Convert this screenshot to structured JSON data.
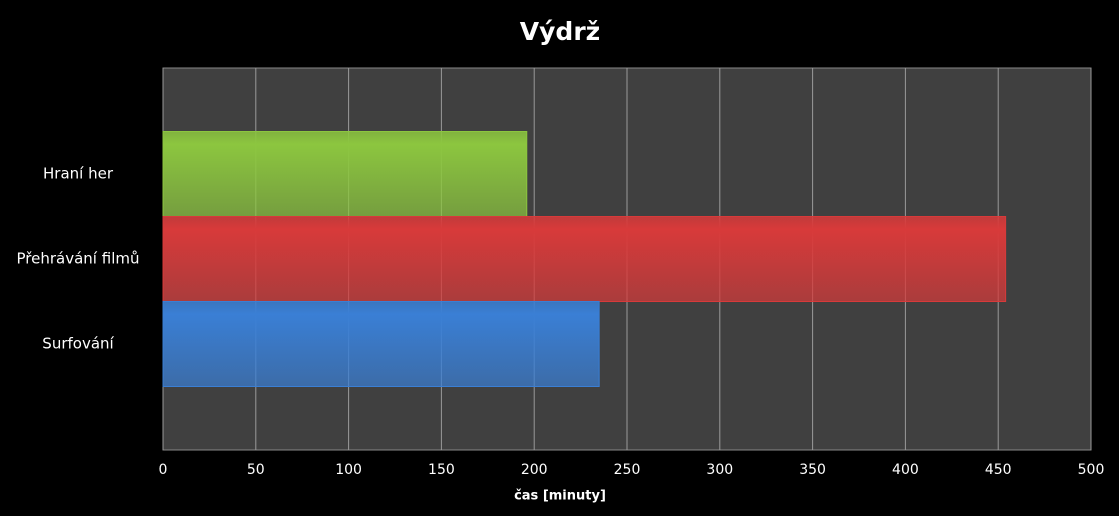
{
  "chart_data": {
    "type": "hbar",
    "title": "Výdrž",
    "categories": [
      "Hraní her",
      "Přehrávání filmů",
      "Surfování"
    ],
    "values": [
      196,
      454,
      235
    ],
    "colors": [
      "#8cc63f",
      "#d83a3a",
      "#3a7fd5"
    ],
    "xlabel": "čas [minuty]",
    "xlim": [
      0,
      500
    ],
    "xticks": [
      0,
      50,
      100,
      150,
      200,
      250,
      300,
      350,
      400,
      450,
      500
    ],
    "grid": true
  }
}
